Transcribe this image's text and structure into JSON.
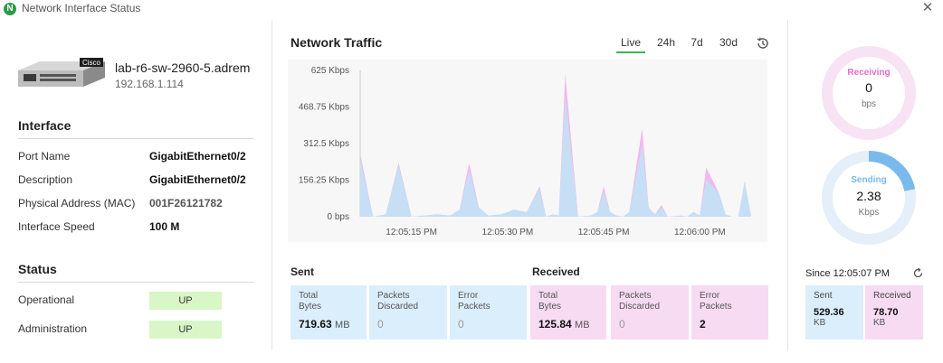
{
  "window": {
    "title": "Network Interface Status",
    "app_icon_glyph": "N"
  },
  "device": {
    "name": "lab-r6-sw-2960-5.adrem",
    "ip": "192.168.1.114",
    "brand": "Cisco"
  },
  "interface": {
    "title": "Interface",
    "rows": [
      {
        "label": "Port Name",
        "value": "GigabitEthernet0/2"
      },
      {
        "label": "Description",
        "value": "GigabitEthernet0/2"
      },
      {
        "label": "Physical Address (MAC)",
        "value": "001F26121782"
      },
      {
        "label": "Interface Speed",
        "value": "100 M"
      }
    ]
  },
  "status": {
    "title": "Status",
    "rows": [
      {
        "label": "Operational",
        "value": "UP"
      },
      {
        "label": "Administration",
        "value": "UP"
      }
    ]
  },
  "traffic": {
    "title": "Network Traffic",
    "tabs": [
      "Live",
      "24h",
      "7d",
      "30d"
    ],
    "active_tab": "Live"
  },
  "chart_data": {
    "type": "area",
    "y_ticks": [
      "625 Kbps",
      "468.75 Kbps",
      "312.5 Kbps",
      "156.25 Kbps",
      "0 bps"
    ],
    "x_ticks": [
      "12:05:15 PM",
      "12:05:30 PM",
      "12:05:45 PM",
      "12:06:00 PM"
    ],
    "ylim": [
      0,
      625
    ],
    "y_unit": "Kbps",
    "x_unit": "seconds after 12:05:07 PM",
    "xlim": [
      0,
      61
    ],
    "series": [
      {
        "name": "Received",
        "color": "#f2b8ec",
        "x": [
          0,
          2,
          4,
          6,
          8,
          10,
          12,
          14,
          15.5,
          17,
          18.5,
          20,
          22,
          24,
          26,
          28,
          29,
          30,
          31,
          32,
          34,
          36,
          37,
          38,
          39,
          40,
          41,
          42,
          44,
          45,
          46,
          47,
          48,
          50,
          51,
          52,
          53,
          54,
          56,
          57,
          58,
          59,
          60,
          61
        ],
        "y": [
          270,
          0,
          10,
          230,
          0,
          5,
          10,
          5,
          30,
          230,
          40,
          5,
          10,
          30,
          20,
          130,
          0,
          10,
          5,
          610,
          0,
          5,
          20,
          130,
          20,
          5,
          0,
          20,
          380,
          40,
          10,
          50,
          0,
          5,
          0,
          20,
          5,
          210,
          100,
          10,
          0,
          0,
          150,
          0
        ]
      },
      {
        "name": "Sent",
        "color": "#c6dff4",
        "x": [
          0,
          2,
          4,
          6,
          8,
          10,
          12,
          14,
          15.5,
          17,
          18.5,
          20,
          22,
          24,
          26,
          28,
          29,
          30,
          31,
          32,
          34,
          36,
          37,
          38,
          39,
          40,
          41,
          42,
          44,
          45,
          46,
          47,
          48,
          50,
          51,
          52,
          53,
          54,
          56,
          57,
          58,
          59,
          60,
          61
        ],
        "y": [
          250,
          0,
          10,
          220,
          0,
          5,
          10,
          5,
          30,
          200,
          40,
          5,
          10,
          30,
          20,
          120,
          0,
          10,
          5,
          520,
          0,
          5,
          20,
          110,
          20,
          5,
          0,
          20,
          310,
          40,
          10,
          40,
          0,
          5,
          0,
          20,
          5,
          160,
          100,
          10,
          0,
          0,
          150,
          0
        ]
      }
    ]
  },
  "sent": {
    "title": "Sent",
    "total_label": "Total Bytes",
    "total_value": "719.63",
    "total_unit": "MB",
    "discarded_label": "Packets Discarded",
    "discarded_value": "0",
    "errors_label": "Error Packets",
    "errors_value": "0"
  },
  "received": {
    "title": "Received",
    "total_label": "Total Bytes",
    "total_value": "125.84",
    "total_unit": "MB",
    "discarded_label": "Packets Discarded",
    "discarded_value": "0",
    "errors_label": "Error Packets",
    "errors_value": "2"
  },
  "gauges": {
    "receiving": {
      "title": "Receiving",
      "value": "0",
      "unit": "bps",
      "fill_fraction": 0,
      "color": "#e86ccd",
      "track": "#f7e3f3"
    },
    "sending": {
      "title": "Sending",
      "value": "2.38",
      "unit": "Kbps",
      "fill_fraction": 0.22,
      "color": "#7ab9ec",
      "track": "#e4eff9"
    }
  },
  "since": {
    "label": "Since 12:05:07 PM",
    "sent_label": "Sent",
    "sent_value": "529.36",
    "sent_unit": "KB",
    "received_label": "Received",
    "received_value": "78.70",
    "received_unit": "KB"
  },
  "colors": {
    "accent": "#3cb44a",
    "sent_bg": "#dbeefc",
    "received_bg": "#f7dbf3",
    "status_ok": "#d9f7c6"
  }
}
